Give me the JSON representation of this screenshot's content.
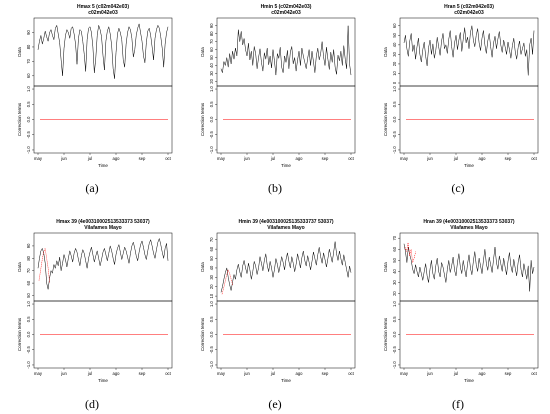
{
  "figure": {
    "captions": [
      "(a)",
      "(b)",
      "(c)",
      "(d)",
      "(e)",
      "(f)"
    ]
  },
  "chart_data": [
    {
      "type": "line",
      "title": "Hmax   5 (c02m042e03)",
      "subtitle": "c02m042e03",
      "x_ticks": [
        "may",
        "jun",
        "jul",
        "ago",
        "sep",
        "oct"
      ],
      "upper": {
        "ylabel": "Data",
        "ylim": [
          55,
          98
        ],
        "yticks": [
          60,
          70,
          80,
          90
        ]
      },
      "lower": {
        "ylabel": "Correction terms",
        "ylim": [
          -1.1,
          1.1
        ],
        "yticks": [
          -1.0,
          -0.5,
          0.0,
          0.5,
          1.0
        ],
        "correction_value": 0.0
      },
      "xlabel": "Time",
      "line_color": "#000000",
      "correction_color": "#ff0000",
      "series": [
        {
          "values": [
            78,
            84,
            88,
            82,
            86,
            91,
            87,
            84,
            90,
            92,
            88,
            85,
            93,
            95,
            89,
            83,
            71,
            60,
            79,
            88,
            92,
            90,
            86,
            93,
            94,
            89,
            82,
            68,
            86,
            92,
            91,
            84,
            75,
            63,
            85,
            93,
            94,
            90,
            80,
            62,
            72,
            88,
            95,
            92,
            87,
            74,
            64,
            84,
            91,
            94,
            89,
            81,
            65,
            58,
            76,
            89,
            93,
            90,
            85,
            71,
            66,
            82,
            90,
            94,
            92,
            86,
            73,
            78,
            88,
            93,
            96,
            90,
            84,
            74,
            69,
            83,
            91,
            93,
            88,
            80,
            71,
            86,
            92,
            95,
            93,
            87,
            79,
            66,
            82,
            90,
            94
          ]
        }
      ]
    },
    {
      "type": "line",
      "title": "Hmin   5 (c02m042e03)",
      "subtitle": "c02m042e03",
      "x_ticks": [
        "may",
        "jun",
        "jul",
        "ago",
        "sep",
        "oct"
      ],
      "upper": {
        "ylabel": "Data",
        "ylim": [
          18,
          96
        ],
        "yticks": [
          20,
          30,
          40,
          50,
          60,
          70,
          80,
          90
        ]
      },
      "lower": {
        "ylabel": "Correction terms",
        "ylim": [
          -1.1,
          1.1
        ],
        "yticks": [
          -1.0,
          -0.5,
          0.0,
          0.5,
          1.0
        ],
        "correction_value": 0.0
      },
      "xlabel": "Time",
      "line_color": "#000000",
      "correction_color": "#ff0000",
      "series": [
        {
          "values": [
            36,
            31,
            45,
            40,
            50,
            38,
            55,
            42,
            58,
            48,
            62,
            52,
            85,
            70,
            83,
            66,
            74,
            60,
            52,
            68,
            47,
            58,
            40,
            64,
            55,
            36,
            50,
            61,
            44,
            33,
            56,
            48,
            62,
            41,
            52,
            37,
            60,
            46,
            28,
            55,
            49,
            63,
            38,
            31,
            52,
            44,
            59,
            36,
            57,
            64,
            42,
            50,
            33,
            47,
            58,
            40,
            62,
            52,
            44,
            36,
            49,
            60,
            40,
            58,
            45,
            31,
            52,
            62,
            47,
            55,
            70,
            51,
            40,
            63,
            48,
            35,
            57,
            44,
            60,
            38,
            29,
            53,
            46,
            58,
            40,
            65,
            48,
            36,
            90,
            42,
            28
          ]
        }
      ]
    },
    {
      "type": "line",
      "title": "Hran   5 (c02m042e03)",
      "subtitle": "c02m042e03",
      "x_ticks": [
        "may",
        "jun",
        "jul",
        "ago",
        "sep",
        "oct"
      ],
      "upper": {
        "ylabel": "Data",
        "ylim": [
          0,
          65
        ],
        "yticks": [
          0,
          10,
          20,
          30,
          40,
          50,
          60
        ]
      },
      "lower": {
        "ylabel": "Correction terms",
        "ylim": [
          -1.1,
          1.1
        ],
        "yticks": [
          -1.0,
          -0.5,
          0.0,
          0.5,
          1.0
        ],
        "correction_value": 0.0
      },
      "xlabel": "Time",
      "line_color": "#000000",
      "correction_color": "#ff0000",
      "series": [
        {
          "values": [
            42,
            50,
            36,
            28,
            44,
            52,
            33,
            40,
            25,
            38,
            47,
            30,
            22,
            35,
            43,
            28,
            18,
            37,
            45,
            30,
            41,
            26,
            34,
            48,
            38,
            29,
            44,
            52,
            36,
            40,
            31,
            46,
            55,
            38,
            27,
            42,
            50,
            35,
            45,
            53,
            33,
            46,
            58,
            42,
            48,
            36,
            53,
            60,
            45,
            38,
            50,
            57,
            42,
            34,
            47,
            55,
            40,
            31,
            44,
            52,
            38,
            27,
            42,
            49,
            36,
            46,
            54,
            40,
            32,
            45,
            38,
            30,
            43,
            35,
            26,
            39,
            47,
            33,
            25,
            37,
            44,
            30,
            36,
            42,
            28,
            35,
            8,
            40,
            47,
            30,
            55
          ]
        }
      ]
    },
    {
      "type": "line",
      "title": "Hmax   39 (4e00310002513533373 53037)",
      "subtitle": "Vilafames Mayo",
      "x_ticks": [
        "may",
        "jun",
        "jul",
        "ago",
        "sep",
        "oct"
      ],
      "upper": {
        "ylabel": "Data",
        "ylim": [
          48,
          98
        ],
        "yticks": [
          50,
          60,
          70,
          80,
          90
        ]
      },
      "lower": {
        "ylabel": "Correction terms",
        "ylim": [
          -1.1,
          1.1
        ],
        "yticks": [
          -1.0,
          -0.5,
          0.0,
          0.5,
          1.0
        ],
        "correction_value": 0.0
      },
      "xlabel": "Time",
      "line_color": "#000000",
      "correction_color": "#ff0000",
      "red_segment": [
        62,
        70,
        78,
        85,
        88,
        80,
        72,
        60
      ],
      "series": [
        {
          "values": [
            72,
            80,
            86,
            88,
            84,
            76,
            60,
            55,
            64,
            70,
            68,
            75,
            72,
            78,
            74,
            81,
            70,
            76,
            83,
            79,
            73,
            80,
            86,
            82,
            77,
            84,
            88,
            85,
            79,
            74,
            82,
            87,
            84,
            78,
            72,
            80,
            85,
            89,
            83,
            77,
            82,
            86,
            80,
            74,
            79,
            85,
            88,
            83,
            78,
            84,
            90,
            86,
            80,
            75,
            83,
            88,
            91,
            85,
            79,
            84,
            89,
            86,
            81,
            76,
            84,
            90,
            93,
            88,
            82,
            78,
            85,
            91,
            94,
            89,
            83,
            79,
            86,
            92,
            95,
            90,
            84,
            80,
            87,
            93,
            96,
            91,
            85,
            80,
            88,
            92,
            78
          ]
        }
      ]
    },
    {
      "type": "line",
      "title": "Hmin   39 (4e003100025135333737 53037)",
      "subtitle": "Vilafames Mayo",
      "x_ticks": [
        "may",
        "jun",
        "jul",
        "ago",
        "sep",
        "oct"
      ],
      "upper": {
        "ylabel": "Data",
        "ylim": [
          8,
          74
        ],
        "yticks": [
          10,
          20,
          30,
          40,
          50,
          60,
          70
        ]
      },
      "lower": {
        "ylabel": "Correction terms",
        "ylim": [
          -1.1,
          1.1
        ],
        "yticks": [
          -1.0,
          -0.5,
          0.0,
          0.5,
          1.0
        ],
        "correction_value": 0.0
      },
      "xlabel": "Time",
      "line_color": "#000000",
      "correction_color": "#ff0000",
      "red_segment": [
        12,
        18,
        25,
        32,
        38,
        34,
        28,
        22
      ],
      "series": [
        {
          "values": [
            14,
            20,
            28,
            35,
            40,
            30,
            22,
            16,
            25,
            33,
            28,
            38,
            44,
            36,
            30,
            42,
            48,
            40,
            34,
            45,
            38,
            28,
            36,
            47,
            42,
            33,
            40,
            52,
            45,
            37,
            48,
            55,
            43,
            36,
            47,
            40,
            30,
            38,
            50,
            44,
            35,
            43,
            52,
            46,
            38,
            49,
            56,
            47,
            40,
            52,
            45,
            36,
            44,
            55,
            48,
            40,
            51,
            58,
            48,
            42,
            53,
            46,
            38,
            47,
            57,
            50,
            43,
            54,
            62,
            52,
            45,
            56,
            49,
            41,
            50,
            60,
            53,
            46,
            57,
            68,
            55,
            48,
            58,
            50,
            43,
            54,
            46,
            38,
            30,
            42,
            35
          ]
        }
      ]
    },
    {
      "type": "line",
      "title": "Hran   39 (4e00310002513533373 53037)",
      "subtitle": "Vilafames Mayo",
      "x_ticks": [
        "may",
        "jun",
        "jul",
        "ago",
        "sep",
        "oct"
      ],
      "upper": {
        "ylabel": "Data",
        "ylim": [
          16,
          72
        ],
        "yticks": [
          20,
          30,
          40,
          50,
          60,
          70
        ]
      },
      "lower": {
        "ylabel": "Correction terms",
        "ylim": [
          -1.1,
          1.1
        ],
        "yticks": [
          -1.0,
          -0.5,
          0.0,
          0.5,
          1.0
        ],
        "correction_value": 0.0
      },
      "xlabel": "Time",
      "line_color": "#000000",
      "correction_color": "#ff0000",
      "red_segment": [
        62,
        58,
        66,
        54,
        60,
        48,
        52,
        58
      ],
      "series": [
        {
          "values": [
            65,
            58,
            48,
            62,
            55,
            50,
            42,
            38,
            46,
            40,
            35,
            44,
            38,
            32,
            40,
            47,
            36,
            30,
            42,
            50,
            38,
            33,
            45,
            52,
            40,
            35,
            48,
            44,
            37,
            30,
            42,
            50,
            39,
            45,
            53,
            41,
            36,
            48,
            56,
            44,
            38,
            50,
            42,
            35,
            47,
            55,
            43,
            37,
            49,
            58,
            46,
            40,
            52,
            45,
            38,
            50,
            60,
            47,
            41,
            53,
            46,
            39,
            51,
            62,
            48,
            42,
            54,
            47,
            40,
            52,
            44,
            37,
            49,
            57,
            45,
            39,
            51,
            43,
            36,
            48,
            55,
            42,
            35,
            47,
            40,
            33,
            45,
            22,
            50,
            38,
            44
          ]
        }
      ]
    }
  ]
}
